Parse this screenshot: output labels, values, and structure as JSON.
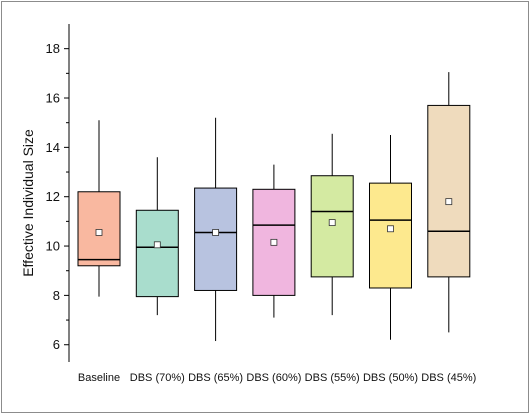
{
  "chart_data": {
    "type": "box",
    "title": "",
    "xlabel": "",
    "ylabel": "Effective Individual Size",
    "ylim": [
      5.3,
      19
    ],
    "yticks": [
      6,
      8,
      10,
      12,
      14,
      16,
      18
    ],
    "grid": false,
    "categories": [
      "Baseline",
      "DBS (70%)",
      "DBS (65%)",
      "DBS (60%)",
      "DBS (55%)",
      "DBS (50%)",
      "DBS (45%)"
    ],
    "boxes": [
      {
        "min": 7.95,
        "q1": 9.2,
        "median": 9.45,
        "q3": 12.2,
        "max": 15.1,
        "mean": 10.55,
        "color": "#f9b8a0"
      },
      {
        "min": 7.2,
        "q1": 7.95,
        "median": 9.95,
        "q3": 11.45,
        "max": 13.6,
        "mean": 10.05,
        "color": "#a9ddcd"
      },
      {
        "min": 6.15,
        "q1": 8.2,
        "median": 10.55,
        "q3": 12.35,
        "max": 15.2,
        "mean": 10.55,
        "color": "#b8c3e0"
      },
      {
        "min": 7.1,
        "q1": 8.0,
        "median": 10.85,
        "q3": 12.3,
        "max": 13.3,
        "mean": 10.15,
        "color": "#f0b6df"
      },
      {
        "min": 7.2,
        "q1": 8.75,
        "median": 11.4,
        "q3": 12.85,
        "max": 14.55,
        "mean": 10.95,
        "color": "#d4eaa2"
      },
      {
        "min": 6.2,
        "q1": 8.3,
        "median": 11.05,
        "q3": 12.55,
        "max": 14.5,
        "mean": 10.7,
        "color": "#fde98e"
      },
      {
        "min": 6.5,
        "q1": 8.75,
        "median": 10.6,
        "q3": 15.7,
        "max": 17.05,
        "mean": 11.8,
        "color": "#efdbbd"
      }
    ]
  }
}
